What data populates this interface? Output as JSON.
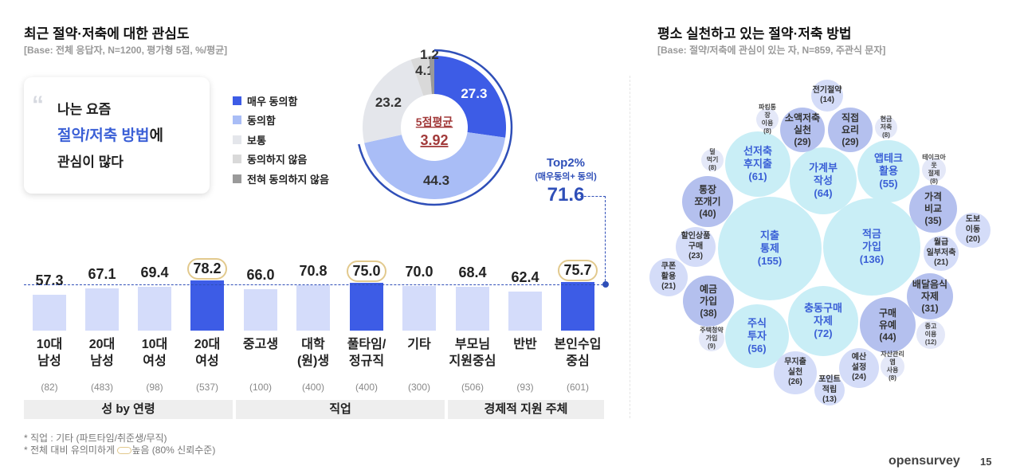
{
  "left": {
    "title": "최근 절약·저축에 대한 관심도",
    "base": "[Base: 전체 응답자, N=1200, 평가형 5점, %/평균]"
  },
  "quote": {
    "mark": "“",
    "line1": "나는 요즘",
    "line2_hl": "절약/저축 방법",
    "line2_rest": "에",
    "line3": "관심이 많다"
  },
  "chart_data": [
    {
      "type": "pie",
      "donut": true,
      "legend": [
        "매우 동의함",
        "동의함",
        "보통",
        "동의하지 않음",
        "전혀 동의하지 않음"
      ],
      "values": [
        27.3,
        44.3,
        23.2,
        4.1,
        1.2
      ],
      "colors": [
        "#3d5ce6",
        "#a9bdf6",
        "#e4e6eb",
        "#d9d9d9",
        "#9a9a9a"
      ],
      "center_label": "5점평균",
      "center_value": "3.92",
      "top2": {
        "label": "Top2%",
        "sub": "(매우동의+ 동의)",
        "value": "71.6"
      }
    },
    {
      "type": "bar",
      "categories": [
        [
          "10대",
          "남성"
        ],
        [
          "20대",
          "남성"
        ],
        [
          "10대",
          "여성"
        ],
        [
          "20대",
          "여성"
        ],
        [
          "중고생",
          ""
        ],
        [
          "대학",
          "(원)생"
        ],
        [
          "풀타임/",
          "정규직"
        ],
        [
          "기타",
          ""
        ],
        [
          "부모님",
          "지원중심"
        ],
        [
          "반반",
          ""
        ],
        [
          "본인수입",
          "중심"
        ]
      ],
      "values": [
        57.3,
        67.1,
        69.4,
        78.2,
        66.0,
        70.8,
        75.0,
        70.0,
        68.4,
        62.4,
        75.7
      ],
      "n": [
        "(82)",
        "(483)",
        "(98)",
        "(537)",
        "(100)",
        "(400)",
        "(400)",
        "(300)",
        "(506)",
        "(93)",
        "(601)"
      ],
      "significant_high": [
        false,
        false,
        false,
        true,
        false,
        false,
        true,
        false,
        false,
        false,
        true
      ],
      "reference_line": 71.6,
      "groups": [
        "성 by 연령",
        "직업",
        "경제적 지원 주체"
      ]
    }
  ],
  "notes": [
    "* 직업 : 기타 (파트타임/취준생/무직)",
    "* 전체 대비 유의미하게",
    "높음 (80% 신뢰수준)"
  ],
  "right": {
    "title": "평소 실천하고 있는 절약·저축 방법",
    "base": "[Base: 절약/저축에 관심이 있는 자, N=859, 주관식 문자]",
    "bubbles": [
      {
        "label": [
          "지출",
          "통제"
        ],
        "value": 155,
        "tier": "big"
      },
      {
        "label": [
          "적금",
          "가입"
        ],
        "value": 136,
        "tier": "big"
      },
      {
        "label": [
          "충동구매",
          "자제"
        ],
        "value": 72,
        "tier": "big"
      },
      {
        "label": [
          "가계부",
          "작성"
        ],
        "value": 64,
        "tier": "big"
      },
      {
        "label": [
          "선저축",
          "후지출"
        ],
        "value": 61,
        "tier": "big"
      },
      {
        "label": [
          "주식",
          "투자"
        ],
        "value": 56,
        "tier": "big"
      },
      {
        "label": [
          "앱테크",
          "활용"
        ],
        "value": 55,
        "tier": "big"
      },
      {
        "label": [
          "구매",
          "유예"
        ],
        "value": 44,
        "tier": "mid"
      },
      {
        "label": [
          "통장",
          "쪼개기"
        ],
        "value": 40,
        "tier": "mid"
      },
      {
        "label": [
          "예금",
          "가입"
        ],
        "value": 38,
        "tier": "mid"
      },
      {
        "label": [
          "가격",
          "비교"
        ],
        "value": 35,
        "tier": "mid"
      },
      {
        "label": [
          "배달음식",
          "자제"
        ],
        "value": 31,
        "tier": "mid"
      },
      {
        "label": [
          "소액저축",
          "실천"
        ],
        "value": 29,
        "tier": "mid"
      },
      {
        "label": [
          "직접",
          "요리"
        ],
        "value": 29,
        "tier": "mid"
      },
      {
        "label": [
          "무지출",
          "실천"
        ],
        "value": 26,
        "tier": "small"
      },
      {
        "label": [
          "예산",
          "설정"
        ],
        "value": 24,
        "tier": "small"
      },
      {
        "label": [
          "할인상품",
          "구매"
        ],
        "value": 23,
        "tier": "small"
      },
      {
        "label": [
          "쿠폰",
          "활용"
        ],
        "value": 21,
        "tier": "small"
      },
      {
        "label": [
          "월급",
          "일부저축"
        ],
        "value": 21,
        "tier": "small"
      },
      {
        "label": [
          "도보",
          "이동"
        ],
        "value": 20,
        "tier": "small"
      },
      {
        "label": [
          "전기절약"
        ],
        "value": 14,
        "tier": "small"
      },
      {
        "label": [
          "포인트",
          "적립"
        ],
        "value": 13,
        "tier": "small"
      },
      {
        "label": [
          "중고",
          "이용"
        ],
        "value": 12,
        "tier": "tiny"
      },
      {
        "label": [
          "주택청약",
          "가입"
        ],
        "value": 9,
        "tier": "tiny"
      },
      {
        "label": [
          "파킹통장",
          "이용"
        ],
        "value": 8,
        "tier": "tiny"
      },
      {
        "label": [
          "현금",
          "저축"
        ],
        "value": 8,
        "tier": "tiny"
      },
      {
        "label": [
          "덜",
          "먹기"
        ],
        "value": 8,
        "tier": "tiny"
      },
      {
        "label": [
          "테이크아웃",
          "절제"
        ],
        "value": 8,
        "tier": "tiny"
      },
      {
        "label": [
          "자산관리앱",
          "사용"
        ],
        "value": 8,
        "tier": "tiny"
      }
    ]
  },
  "footer": {
    "brand": "opensurvey",
    "page": "15"
  }
}
